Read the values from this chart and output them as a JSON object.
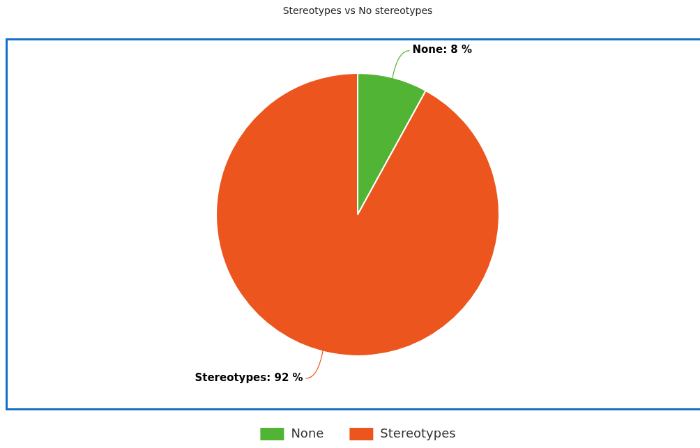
{
  "chart_data": {
    "type": "pie",
    "title": "Stereotypes vs No stereotypes",
    "categories": [
      "None",
      "Stereotypes"
    ],
    "values": [
      8,
      92
    ],
    "colors": [
      "#52b434",
      "#ec561e"
    ],
    "value_labels": [
      "None: 8 %",
      "Stereotypes: 92 %"
    ],
    "legend": "bottom"
  }
}
